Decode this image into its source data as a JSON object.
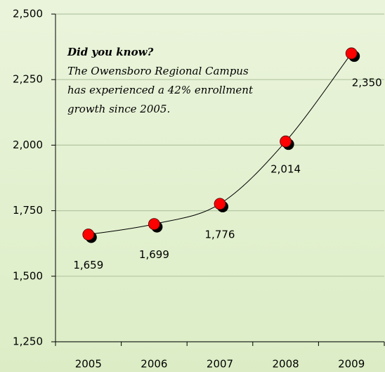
{
  "chart_data": {
    "type": "line",
    "categories": [
      "2005",
      "2006",
      "2007",
      "2008",
      "2009"
    ],
    "series": [
      {
        "values": [
          1659,
          1699,
          1776,
          2014,
          2350
        ],
        "color": "#ff0000",
        "value_labels": [
          "1,659",
          "1,699",
          "1,776",
          "2,014",
          "2,350"
        ]
      }
    ],
    "ylim": [
      1250,
      2500
    ],
    "yticks": [
      {
        "value": 1250,
        "label": "1,250"
      },
      {
        "value": 1500,
        "label": "1,500"
      },
      {
        "value": 1750,
        "label": "1,750"
      },
      {
        "value": 2000,
        "label": "2,000"
      },
      {
        "value": 2250,
        "label": "2,250"
      },
      {
        "value": 2500,
        "label": "2,500"
      }
    ],
    "grid": true,
    "annotation": {
      "title": "Did you know?",
      "lines": [
        "The Owensboro Regional Campus",
        "has experienced a 42% enrollment",
        "growth since 2005."
      ]
    }
  }
}
